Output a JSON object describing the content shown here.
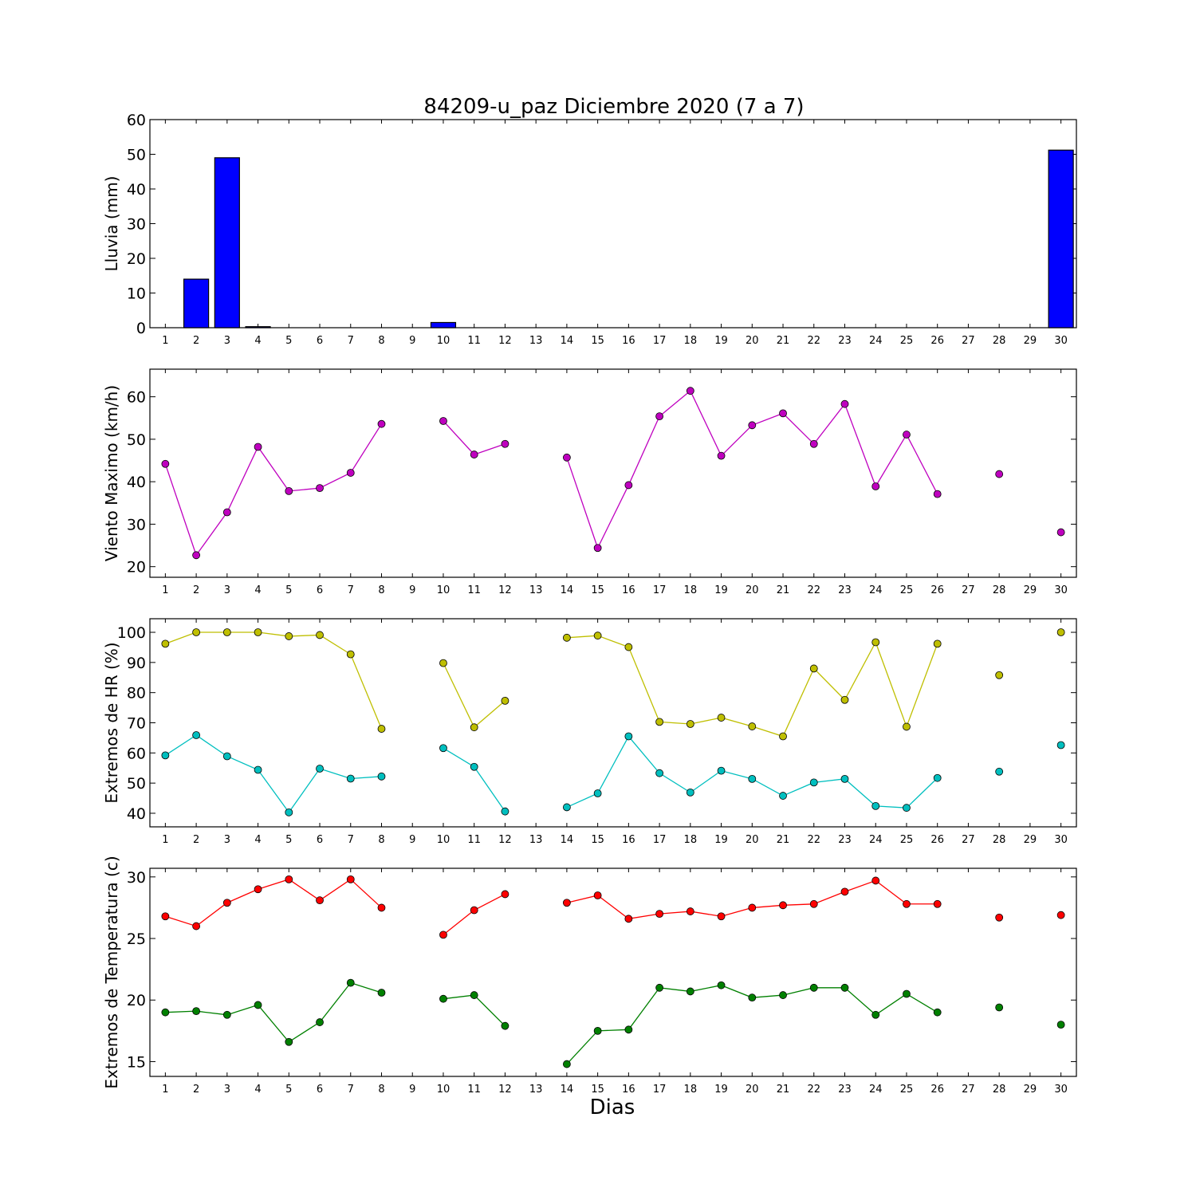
{
  "chart_data": {
    "title": "84209-u_paz Diciembre 2020  (7 a 7)",
    "xlabel": "Dias",
    "x_ticks": [
      1,
      2,
      3,
      4,
      5,
      6,
      7,
      8,
      9,
      10,
      11,
      12,
      13,
      14,
      15,
      16,
      17,
      18,
      19,
      20,
      21,
      22,
      23,
      24,
      25,
      26,
      27,
      28,
      29,
      30
    ],
    "x_tick_labels": [
      "1",
      "2",
      "3",
      "4",
      "5",
      "6",
      "7",
      "8",
      "9",
      "10",
      "11",
      "12",
      "13",
      "14",
      "15",
      "16",
      "17",
      "18",
      "19",
      "20",
      "21",
      "22",
      "23",
      "24",
      "25",
      "26",
      "27",
      "28",
      "29",
      "30"
    ],
    "xlim": [
      0.5,
      30.5
    ],
    "panels": [
      {
        "type": "bar",
        "ylabel": "Lluvia (mm)",
        "ylim": [
          0,
          60
        ],
        "yticks": [
          0,
          10,
          20,
          30,
          40,
          50,
          60
        ],
        "series": [
          {
            "color": "#0000ff",
            "values": [
              0,
              14,
              49,
              0.3,
              0,
              0,
              0,
              0,
              0,
              1.5,
              0,
              0,
              0,
              0,
              0,
              0,
              0,
              0,
              0,
              0,
              0,
              0,
              0,
              0,
              0,
              0,
              0,
              0,
              0,
              51.2
            ]
          }
        ]
      },
      {
        "type": "line",
        "ylabel": "Viento Maximo (km/h)",
        "ylim": [
          17.5,
          66.5
        ],
        "yticks": [
          20,
          30,
          40,
          50,
          60
        ],
        "series": [
          {
            "color": "#bf00bf",
            "values": [
              44.2,
              22.7,
              32.8,
              48.2,
              37.8,
              38.5,
              42.1,
              53.6,
              null,
              54.3,
              46.4,
              48.9,
              null,
              45.7,
              24.4,
              39.2,
              55.4,
              61.4,
              46.1,
              53.3,
              56.1,
              48.9,
              58.3,
              38.9,
              51.1,
              37.1,
              null,
              41.8,
              null,
              28.1
            ]
          }
        ]
      },
      {
        "type": "line",
        "ylabel": "Extremos de HR (%)",
        "ylim": [
          35.5,
          104.5
        ],
        "yticks": [
          40,
          50,
          60,
          70,
          80,
          90,
          100
        ],
        "series": [
          {
            "color": "#bfbf00",
            "values": [
              96.2,
              100,
              100,
              100,
              98.7,
              99.1,
              92.7,
              68,
              null,
              89.8,
              68.5,
              77.3,
              null,
              98.2,
              98.9,
              95.1,
              70.3,
              69.6,
              71.7,
              68.8,
              65.5,
              88,
              77.6,
              96.7,
              68.7,
              96.2,
              null,
              85.8,
              null,
              100
            ]
          },
          {
            "color": "#00bfbf",
            "values": [
              59.2,
              65.9,
              58.9,
              54.4,
              40.3,
              54.8,
              51.5,
              52.2,
              null,
              61.6,
              55.4,
              40.6,
              null,
              42,
              46.6,
              65.5,
              53.3,
              46.9,
              54.1,
              51.4,
              45.8,
              50.2,
              51.4,
              42.4,
              41.8,
              51.7,
              null,
              53.8,
              null,
              62.6
            ]
          }
        ]
      },
      {
        "type": "line",
        "ylabel": "Extremos de Temperatura (c)",
        "ylim": [
          13.8,
          30.7
        ],
        "yticks": [
          15,
          20,
          25,
          30
        ],
        "series": [
          {
            "color": "#ff0000",
            "values": [
              26.8,
              26,
              27.9,
              29,
              29.8,
              28.1,
              29.8,
              27.5,
              null,
              25.3,
              27.3,
              28.6,
              null,
              27.9,
              28.5,
              26.6,
              27,
              27.2,
              26.8,
              27.5,
              27.7,
              27.8,
              28.8,
              29.7,
              27.8,
              27.8,
              null,
              26.7,
              null,
              26.9
            ]
          },
          {
            "color": "#008000",
            "values": [
              19,
              19.1,
              18.8,
              19.6,
              16.6,
              18.2,
              21.4,
              20.6,
              null,
              20.1,
              20.4,
              17.9,
              null,
              14.8,
              17.5,
              17.6,
              21,
              20.7,
              21.2,
              20.2,
              20.4,
              21,
              21,
              18.8,
              20.5,
              19,
              null,
              19.4,
              null,
              18
            ]
          }
        ]
      }
    ]
  }
}
